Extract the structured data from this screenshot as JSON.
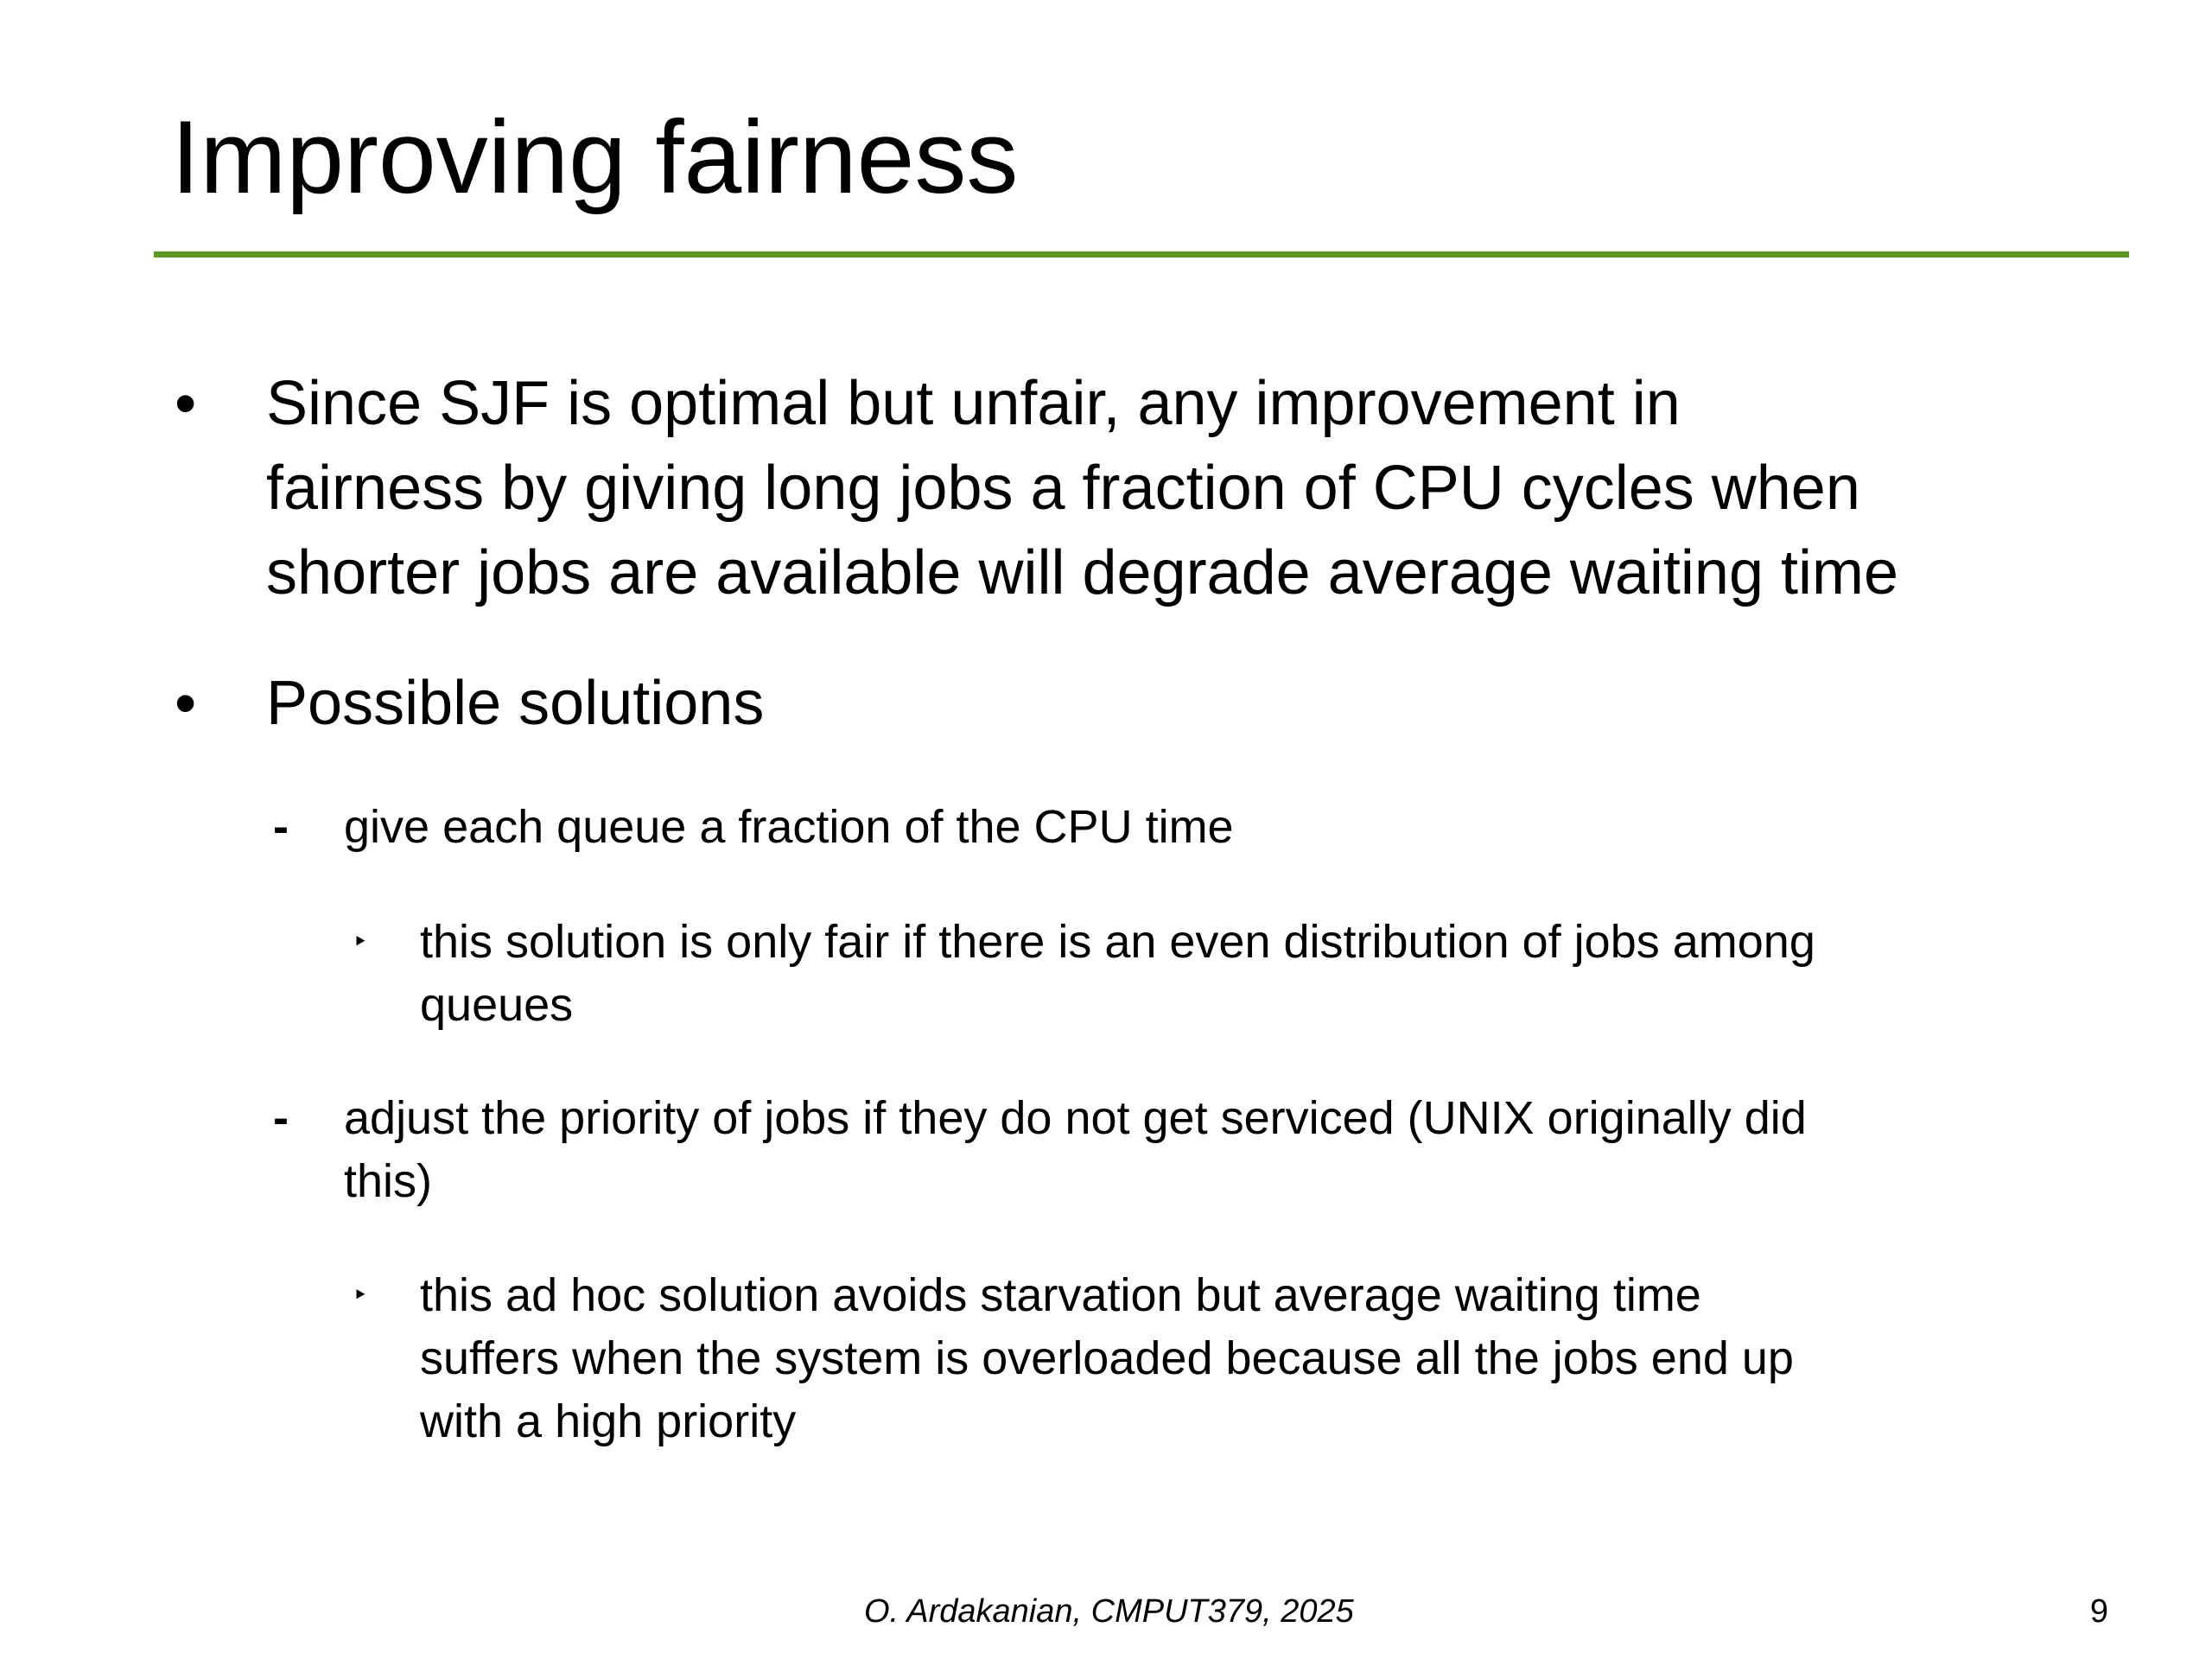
{
  "slide": {
    "title": "Improving fairness",
    "accent_color": "#5a9a1e",
    "bullets": [
      {
        "marker": "•",
        "lines": [
          "Since SJF is optimal but unfair, any improvement in",
          "fairness by giving long jobs a fraction of CPU cycles when",
          "shorter jobs are available will degrade average waiting time"
        ]
      },
      {
        "marker": "•",
        "lines": [
          "Possible solutions"
        ],
        "children": [
          {
            "marker": "-",
            "lines": [
              "give each queue a fraction of the CPU time"
            ],
            "children": [
              {
                "marker": "‣",
                "lines": [
                  "this solution is only fair if there is an even distribution of jobs among",
                  "queues"
                ]
              }
            ]
          },
          {
            "marker": "-",
            "lines": [
              "adjust the priority of jobs if they do not get serviced (UNIX originally did",
              "this)"
            ],
            "children": [
              {
                "marker": "‣",
                "lines": [
                  "this ad hoc solution avoids starvation but average waiting time",
                  "suffers when the system is overloaded because all the jobs end up",
                  "with a high priority"
                ]
              }
            ]
          }
        ]
      }
    ],
    "footer": {
      "credit": "O. Ardakanian, CMPUT379, 2025",
      "page_number": "9"
    }
  }
}
